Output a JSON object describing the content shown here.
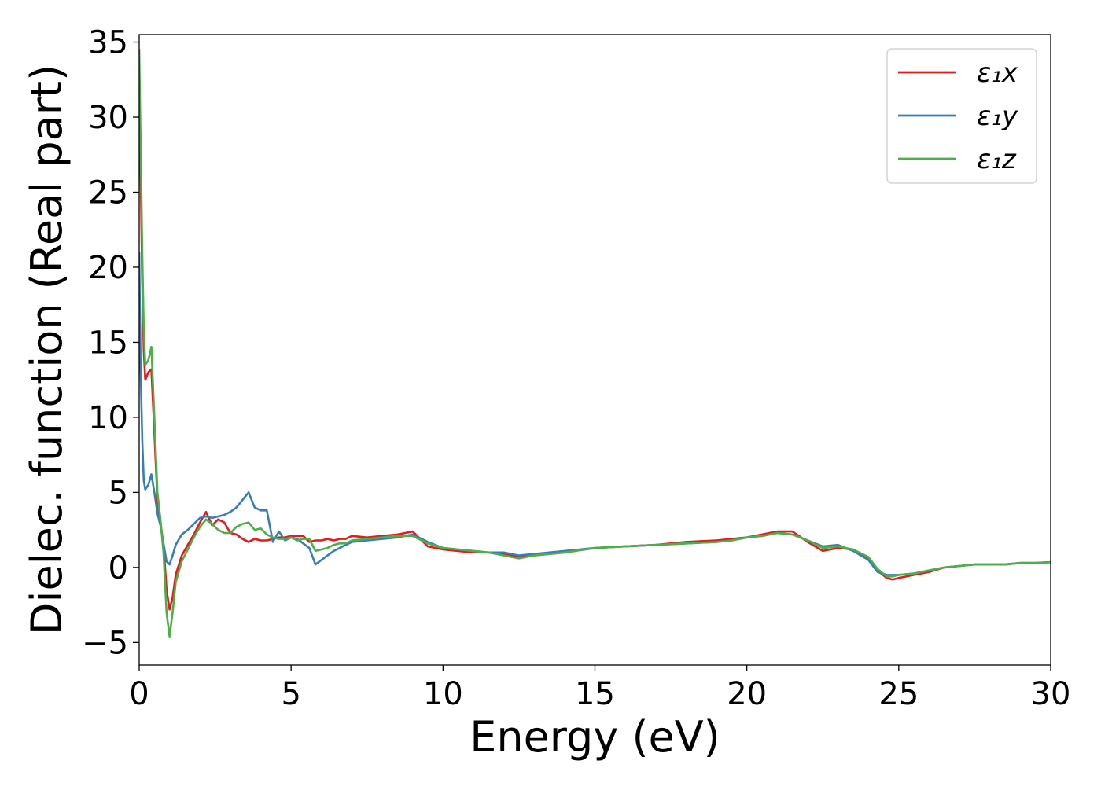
{
  "chart_data": {
    "type": "line",
    "title": "",
    "xlabel": "Energy (eV)",
    "ylabel": "Dielec. function (Real part)",
    "xlim": [
      0,
      30
    ],
    "ylim": [
      -6.5,
      35.5
    ],
    "xticks": [
      0,
      5,
      10,
      15,
      20,
      25,
      30
    ],
    "xtick_labels": [
      "0",
      "5",
      "10",
      "15",
      "20",
      "25",
      "30"
    ],
    "yticks": [
      -5,
      0,
      5,
      10,
      15,
      20,
      25,
      30,
      35
    ],
    "ytick_labels": [
      "−5",
      "0",
      "5",
      "10",
      "15",
      "20",
      "25",
      "30",
      "35"
    ],
    "grid": false,
    "legend_position": "top-right",
    "series": [
      {
        "name": "ε₁x",
        "color": "#e41a1c",
        "x": [
          0.0,
          0.05,
          0.1,
          0.15,
          0.2,
          0.3,
          0.4,
          0.5,
          0.6,
          0.7,
          0.8,
          0.9,
          1.0,
          1.1,
          1.2,
          1.4,
          1.6,
          1.8,
          2.0,
          2.2,
          2.4,
          2.6,
          2.8,
          3.0,
          3.2,
          3.4,
          3.6,
          3.8,
          4.0,
          4.2,
          4.4,
          4.6,
          4.8,
          5.0,
          5.2,
          5.4,
          5.6,
          5.8,
          6.0,
          6.2,
          6.4,
          6.6,
          6.8,
          7.0,
          7.5,
          8.0,
          8.5,
          9.0,
          9.5,
          10.0,
          10.5,
          11.0,
          11.5,
          12.0,
          12.5,
          13.0,
          14.0,
          15.0,
          16.0,
          17.0,
          18.0,
          19.0,
          19.5,
          20.0,
          20.5,
          21.0,
          21.5,
          22.0,
          22.5,
          23.0,
          23.5,
          24.0,
          24.3,
          24.6,
          24.8,
          25.0,
          25.5,
          26.0,
          26.5,
          27.0,
          27.5,
          28.0,
          28.5,
          29.0,
          29.5,
          30.0
        ],
        "y": [
          33.0,
          26.0,
          19.0,
          14.5,
          12.5,
          13.0,
          13.2,
          9.0,
          4.5,
          3.0,
          1.5,
          -1.5,
          -2.8,
          -2.0,
          -0.5,
          0.8,
          1.5,
          2.2,
          3.0,
          3.7,
          2.8,
          3.2,
          3.0,
          2.3,
          2.2,
          1.9,
          1.7,
          1.9,
          1.8,
          1.8,
          1.9,
          2.0,
          2.0,
          2.1,
          2.1,
          2.1,
          1.7,
          1.8,
          1.8,
          1.9,
          1.8,
          1.9,
          1.9,
          2.1,
          2.0,
          2.1,
          2.2,
          2.4,
          1.4,
          1.2,
          1.1,
          1.0,
          1.0,
          0.9,
          0.7,
          0.8,
          1.0,
          1.3,
          1.4,
          1.5,
          1.7,
          1.8,
          1.9,
          2.0,
          2.2,
          2.4,
          2.4,
          1.7,
          1.1,
          1.3,
          1.2,
          0.6,
          -0.2,
          -0.7,
          -0.8,
          -0.7,
          -0.5,
          -0.3,
          0.0,
          0.1,
          0.2,
          0.2,
          0.2,
          0.3,
          0.3,
          0.35
        ]
      },
      {
        "name": "ε₁y",
        "color": "#377eb8",
        "x": [
          0.0,
          0.05,
          0.1,
          0.15,
          0.2,
          0.3,
          0.4,
          0.5,
          0.6,
          0.7,
          0.8,
          0.9,
          1.0,
          1.1,
          1.2,
          1.4,
          1.6,
          1.8,
          2.0,
          2.2,
          2.4,
          2.6,
          2.8,
          3.0,
          3.2,
          3.4,
          3.6,
          3.8,
          4.0,
          4.2,
          4.4,
          4.6,
          4.8,
          5.0,
          5.2,
          5.4,
          5.6,
          5.8,
          6.0,
          6.2,
          6.4,
          6.6,
          6.8,
          7.0,
          7.5,
          8.0,
          8.5,
          9.0,
          9.5,
          10.0,
          10.5,
          11.0,
          11.5,
          12.0,
          12.5,
          13.0,
          14.0,
          15.0,
          16.0,
          17.0,
          18.0,
          19.0,
          19.5,
          20.0,
          20.5,
          21.0,
          21.5,
          22.0,
          22.5,
          23.0,
          23.5,
          24.0,
          24.3,
          24.6,
          24.8,
          25.0,
          25.5,
          26.0,
          26.5,
          27.0,
          27.5,
          28.0,
          28.5,
          29.0,
          29.5,
          30.0
        ],
        "y": [
          21.0,
          13.0,
          8.5,
          5.8,
          5.2,
          5.5,
          6.2,
          5.0,
          3.6,
          2.8,
          1.6,
          0.4,
          0.2,
          0.8,
          1.5,
          2.2,
          2.5,
          2.9,
          3.3,
          3.4,
          3.3,
          3.4,
          3.5,
          3.7,
          4.0,
          4.5,
          5.0,
          4.0,
          3.8,
          3.8,
          1.7,
          2.4,
          1.8,
          2.0,
          1.9,
          1.6,
          1.3,
          0.2,
          0.5,
          0.8,
          1.1,
          1.3,
          1.5,
          1.7,
          1.8,
          1.9,
          2.0,
          2.2,
          1.7,
          1.3,
          1.2,
          1.1,
          1.0,
          1.0,
          0.8,
          0.9,
          1.1,
          1.3,
          1.4,
          1.5,
          1.6,
          1.7,
          1.8,
          2.0,
          2.1,
          2.3,
          2.2,
          1.8,
          1.4,
          1.5,
          1.1,
          0.5,
          -0.3,
          -0.5,
          -0.5,
          -0.5,
          -0.4,
          -0.2,
          0.0,
          0.1,
          0.2,
          0.2,
          0.2,
          0.3,
          0.3,
          0.35
        ]
      },
      {
        "name": "ε₁z",
        "color": "#4daf4a",
        "x": [
          0.0,
          0.05,
          0.1,
          0.15,
          0.2,
          0.3,
          0.4,
          0.5,
          0.6,
          0.7,
          0.8,
          0.9,
          1.0,
          1.1,
          1.2,
          1.4,
          1.6,
          1.8,
          2.0,
          2.2,
          2.4,
          2.6,
          2.8,
          3.0,
          3.2,
          3.4,
          3.6,
          3.8,
          4.0,
          4.2,
          4.4,
          4.6,
          4.8,
          5.0,
          5.2,
          5.4,
          5.6,
          5.8,
          6.0,
          6.2,
          6.4,
          6.6,
          6.8,
          7.0,
          7.5,
          8.0,
          8.5,
          9.0,
          9.5,
          10.0,
          10.5,
          11.0,
          11.5,
          12.0,
          12.5,
          13.0,
          14.0,
          15.0,
          16.0,
          17.0,
          18.0,
          19.0,
          19.5,
          20.0,
          20.5,
          21.0,
          21.5,
          22.0,
          22.5,
          23.0,
          23.5,
          24.0,
          24.3,
          24.6,
          24.8,
          25.0,
          25.5,
          26.0,
          26.5,
          27.0,
          27.5,
          28.0,
          28.5,
          29.0,
          29.5,
          30.0
        ],
        "y": [
          34.5,
          28.0,
          21.0,
          16.0,
          13.5,
          13.8,
          14.7,
          10.0,
          5.0,
          3.2,
          1.0,
          -3.0,
          -4.6,
          -3.0,
          -1.0,
          0.4,
          1.2,
          2.0,
          2.7,
          3.2,
          2.9,
          2.5,
          2.3,
          2.3,
          2.7,
          2.9,
          3.0,
          2.5,
          2.6,
          2.2,
          2.0,
          1.9,
          1.9,
          2.0,
          1.8,
          1.9,
          1.9,
          1.1,
          1.2,
          1.3,
          1.5,
          1.6,
          1.6,
          1.8,
          1.9,
          2.0,
          2.1,
          2.1,
          1.6,
          1.3,
          1.2,
          1.1,
          1.0,
          0.8,
          0.6,
          0.8,
          1.0,
          1.3,
          1.4,
          1.5,
          1.6,
          1.7,
          1.8,
          2.0,
          2.1,
          2.3,
          2.2,
          1.8,
          1.3,
          1.4,
          1.2,
          0.7,
          -0.1,
          -0.6,
          -0.6,
          -0.5,
          -0.4,
          -0.2,
          0.0,
          0.1,
          0.2,
          0.2,
          0.2,
          0.3,
          0.3,
          0.35
        ]
      }
    ]
  }
}
